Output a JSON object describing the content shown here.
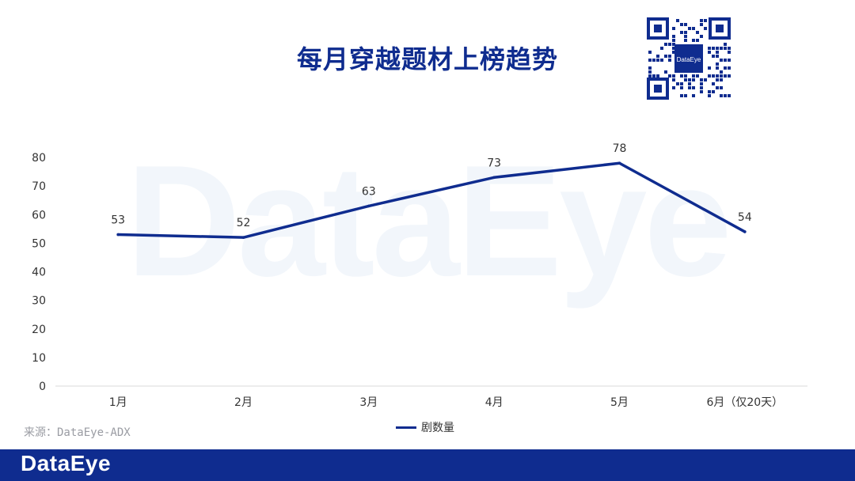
{
  "title": "每月穿越题材上榜趋势",
  "watermark": "DataEye",
  "qr_center_label": "DataEye",
  "source": "来源：DataEye-ADX",
  "footer_logo": "DataEye",
  "colors": {
    "accent": "#0f2c8f",
    "watermark": "#f2f6fb"
  },
  "chart_data": {
    "type": "line",
    "categories": [
      "1月",
      "2月",
      "3月",
      "4月",
      "5月",
      "6月（仅20天）"
    ],
    "series": [
      {
        "name": "剧数量",
        "values": [
          53,
          52,
          63,
          73,
          78,
          54
        ]
      }
    ],
    "ylim": [
      0,
      80
    ],
    "yticks": [
      0,
      10,
      20,
      30,
      40,
      50,
      60,
      70,
      80
    ],
    "data_labels": true,
    "grid": false,
    "legend": "bottom",
    "title": "",
    "xlabel": "",
    "ylabel": ""
  }
}
